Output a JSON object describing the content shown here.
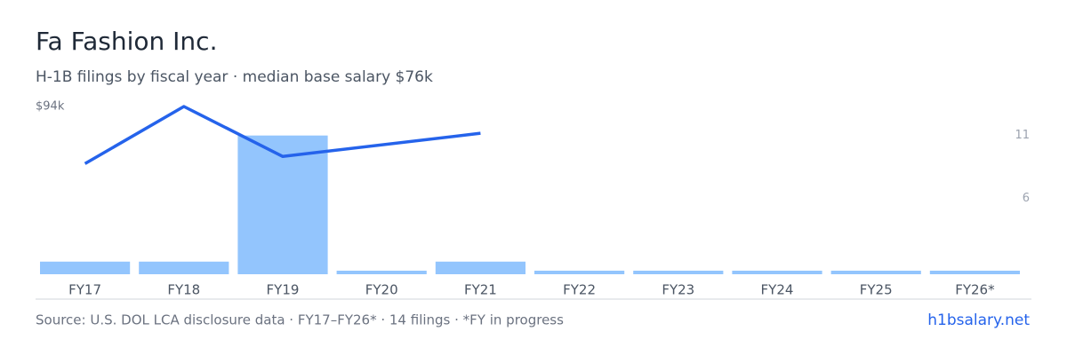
{
  "chart_data": {
    "type": "bar",
    "title": "Fa Fashion Inc.",
    "subtitle": "H-1B filings by fiscal year · median base salary $76k",
    "categories": [
      "FY17",
      "FY18",
      "FY19",
      "FY20",
      "FY21",
      "FY22",
      "FY23",
      "FY24",
      "FY25",
      "FY26*"
    ],
    "bars": {
      "values": [
        1,
        1,
        11,
        0,
        1,
        0,
        0,
        0,
        0,
        0
      ],
      "color": "#93c5fd"
    },
    "line": {
      "type": "line",
      "x": [
        "FY17",
        "FY18",
        "FY19",
        "FY21"
      ],
      "values": [
        62000,
        94000,
        66000,
        79000
      ],
      "color": "#2563eb"
    },
    "ylim": [
      0,
      94000
    ],
    "yticks": [
      {
        "value": 94000,
        "label": "$94k"
      }
    ],
    "y2lim": [
      0,
      13.3
    ],
    "y2ticks": [
      6,
      11
    ],
    "source": "Source: U.S. DOL LCA disclosure data · FY17–FY26* · 14 filings · *FY in progress",
    "brand": "h1bsalary.net"
  }
}
